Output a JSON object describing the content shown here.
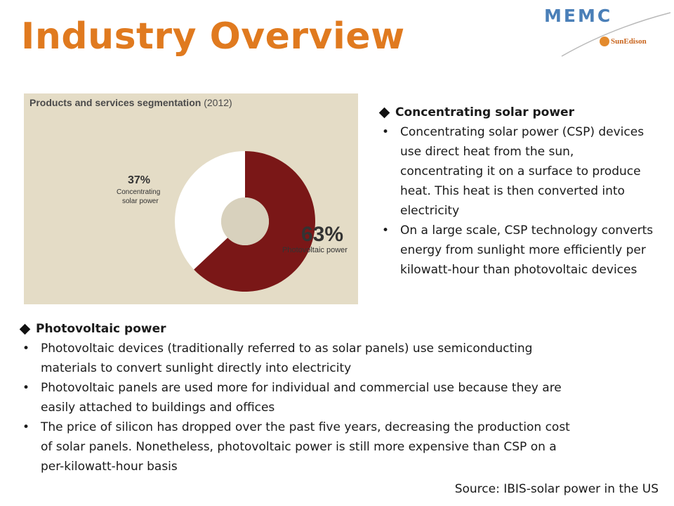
{
  "slide": {
    "title": "Industry Overview",
    "logo": {
      "brand": "MEMC",
      "sub_brand": "SunEdison"
    },
    "source": "Source: IBIS-solar power in the US"
  },
  "chart_data": {
    "type": "pie",
    "title": "Products and services segmentation",
    "subtitle": "(2012)",
    "categories": [
      "Photovoltaic power",
      "Concentrating solar power"
    ],
    "values": [
      63,
      37
    ],
    "labels": [
      "63%",
      "37%"
    ],
    "colors": [
      "#7a1717",
      "#ffffff"
    ],
    "donut": true
  },
  "csp": {
    "heading": "Concentrating solar power",
    "bullets": [
      "Concentrating solar power (CSP) devices use direct heat from the sun, concentrating it on a surface to produce heat. This heat is then converted into electricity",
      "On a large scale, CSP technology converts energy from sunlight more efficiently per kilowatt-hour than photovoltaic devices"
    ]
  },
  "pv": {
    "heading": "Photovoltaic power",
    "bullets": [
      " Photovoltaic devices (traditionally referred to as solar panels) use semiconducting materials to convert sunlight directly into electricity",
      "Photovoltaic panels are used more for individual and commercial use because they are easily attached to buildings and offices",
      "The price of silicon has dropped over the past five years, decreasing the production cost of solar panels. Nonetheless, photovoltaic power is still more expensive than CSP on a per-kilowatt-hour basis"
    ]
  }
}
